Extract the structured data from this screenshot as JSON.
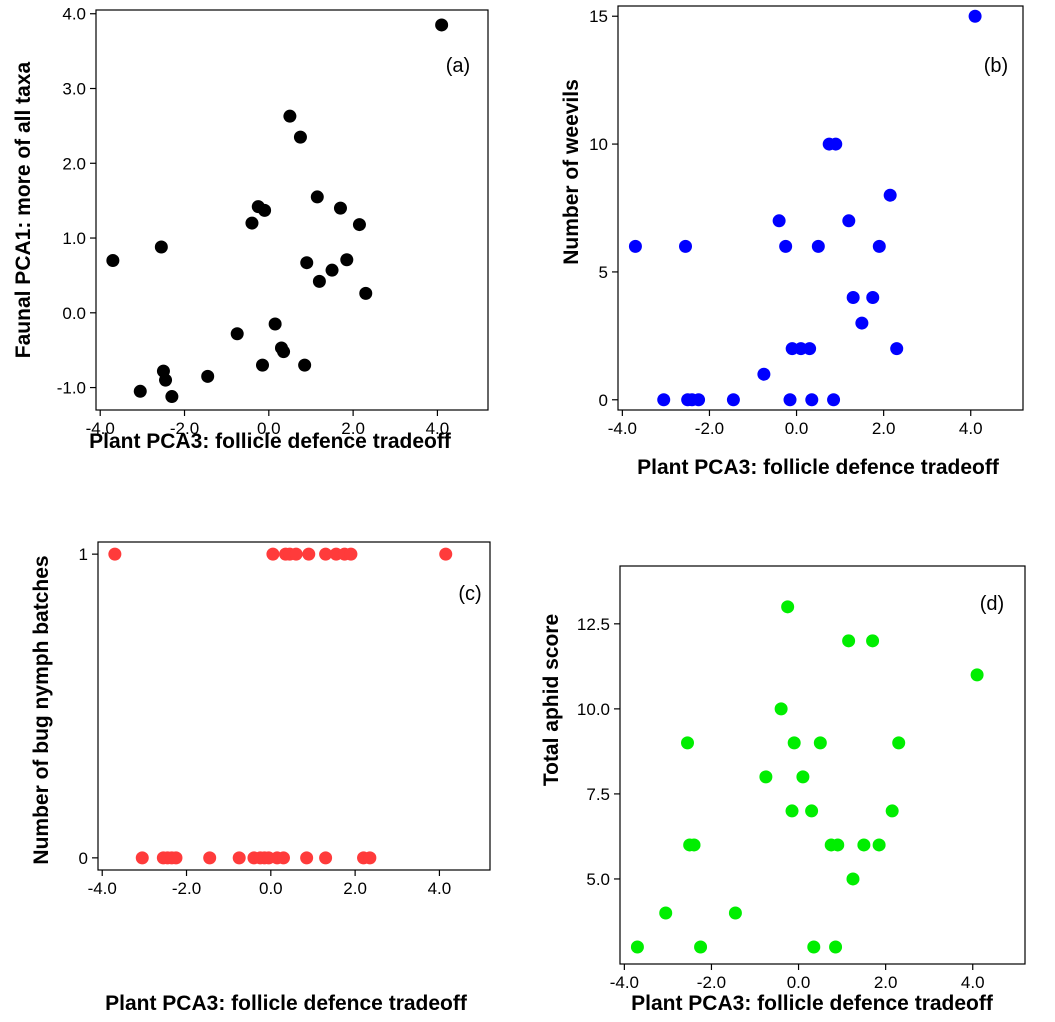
{
  "chart_data": [
    {
      "type": "scatter",
      "panel_label": "(a)",
      "xlabel": "Plant PCA3: follicle defence tradeoff",
      "ylabel": "Faunal PCA1: more of all taxa",
      "xlim": [
        -4.1,
        5.2
      ],
      "ylim": [
        -1.3,
        4.05
      ],
      "xticks": [
        -4.0,
        -2.0,
        0.0,
        2.0,
        4.0
      ],
      "xtick_labels": [
        "-4.0",
        "-2.0",
        "0.0",
        "2.0",
        "4.0"
      ],
      "yticks": [
        -1.0,
        0.0,
        1.0,
        2.0,
        3.0,
        4.0
      ],
      "ytick_labels": [
        "-1.0",
        "0.0",
        "1.0",
        "2.0",
        "3.0",
        "4.0"
      ],
      "grid": false,
      "color": "#000000",
      "points": [
        {
          "x": -3.7,
          "y": 0.7
        },
        {
          "x": -3.05,
          "y": -1.05
        },
        {
          "x": -2.55,
          "y": 0.88
        },
        {
          "x": -2.5,
          "y": -0.78
        },
        {
          "x": -2.45,
          "y": -0.9
        },
        {
          "x": -2.3,
          "y": -1.12
        },
        {
          "x": -1.45,
          "y": -0.85
        },
        {
          "x": -0.75,
          "y": -0.28
        },
        {
          "x": -0.4,
          "y": 1.2
        },
        {
          "x": -0.25,
          "y": 1.42
        },
        {
          "x": -0.15,
          "y": -0.7
        },
        {
          "x": -0.1,
          "y": 1.37
        },
        {
          "x": 0.15,
          "y": -0.15
        },
        {
          "x": 0.3,
          "y": -0.47
        },
        {
          "x": 0.35,
          "y": -0.52
        },
        {
          "x": 0.5,
          "y": 2.63
        },
        {
          "x": 0.75,
          "y": 2.35
        },
        {
          "x": 0.85,
          "y": -0.7
        },
        {
          "x": 0.9,
          "y": 0.67
        },
        {
          "x": 1.15,
          "y": 1.55
        },
        {
          "x": 1.2,
          "y": 0.42
        },
        {
          "x": 1.5,
          "y": 0.57
        },
        {
          "x": 1.7,
          "y": 1.4
        },
        {
          "x": 1.85,
          "y": 0.71
        },
        {
          "x": 2.15,
          "y": 1.18
        },
        {
          "x": 2.3,
          "y": 0.26
        },
        {
          "x": 4.1,
          "y": 3.85
        }
      ]
    },
    {
      "type": "scatter",
      "panel_label": "(b)",
      "xlabel": "Plant PCA3: follicle defence tradeoff",
      "ylabel": "Number of weevils",
      "xlim": [
        -4.1,
        5.2
      ],
      "ylim": [
        -0.4,
        15.4
      ],
      "xticks": [
        -4.0,
        -2.0,
        0.0,
        2.0,
        4.0
      ],
      "xtick_labels": [
        "-4.0",
        "-2.0",
        "0.0",
        "2.0",
        "4.0"
      ],
      "yticks": [
        0,
        5,
        10,
        15
      ],
      "ytick_labels": [
        "0",
        "5",
        "10",
        "15"
      ],
      "grid": false,
      "color": "#0000ff",
      "points": [
        {
          "x": -3.7,
          "y": 6
        },
        {
          "x": -3.05,
          "y": 0
        },
        {
          "x": -2.55,
          "y": 6
        },
        {
          "x": -2.5,
          "y": 0
        },
        {
          "x": -2.4,
          "y": 0
        },
        {
          "x": -2.25,
          "y": 0
        },
        {
          "x": -1.45,
          "y": 0
        },
        {
          "x": -0.75,
          "y": 1
        },
        {
          "x": -0.4,
          "y": 7
        },
        {
          "x": -0.25,
          "y": 6
        },
        {
          "x": -0.15,
          "y": 0
        },
        {
          "x": -0.1,
          "y": 2
        },
        {
          "x": 0.1,
          "y": 2
        },
        {
          "x": 0.3,
          "y": 2
        },
        {
          "x": 0.35,
          "y": 0
        },
        {
          "x": 0.5,
          "y": 6
        },
        {
          "x": 0.75,
          "y": 10
        },
        {
          "x": 0.9,
          "y": 10
        },
        {
          "x": 0.85,
          "y": 0
        },
        {
          "x": 1.2,
          "y": 7
        },
        {
          "x": 1.3,
          "y": 4
        },
        {
          "x": 1.5,
          "y": 3
        },
        {
          "x": 1.75,
          "y": 4
        },
        {
          "x": 1.9,
          "y": 6
        },
        {
          "x": 2.15,
          "y": 8
        },
        {
          "x": 2.3,
          "y": 2
        },
        {
          "x": 4.1,
          "y": 15
        }
      ]
    },
    {
      "type": "scatter",
      "panel_label": "(c)",
      "xlabel": "Plant PCA3: follicle defence tradeoff",
      "ylabel": "Number of bug nymph batches",
      "xlim": [
        -4.1,
        5.2
      ],
      "ylim": [
        -0.04,
        1.04
      ],
      "xticks": [
        -4.0,
        -2.0,
        0.0,
        2.0,
        4.0
      ],
      "xtick_labels": [
        "-4.0",
        "-2.0",
        "0.0",
        "2.0",
        "4.0"
      ],
      "yticks": [
        0,
        1
      ],
      "ytick_labels": [
        "0",
        "1"
      ],
      "grid": false,
      "color": "#ff3b3b",
      "points": [
        {
          "x": -3.7,
          "y": 1
        },
        {
          "x": -3.05,
          "y": 0
        },
        {
          "x": -2.55,
          "y": 0
        },
        {
          "x": -2.45,
          "y": 0
        },
        {
          "x": -2.35,
          "y": 0
        },
        {
          "x": -2.25,
          "y": 0
        },
        {
          "x": -1.45,
          "y": 0
        },
        {
          "x": -0.75,
          "y": 0
        },
        {
          "x": -0.4,
          "y": 0
        },
        {
          "x": -0.25,
          "y": 0
        },
        {
          "x": -0.15,
          "y": 0
        },
        {
          "x": -0.05,
          "y": 0
        },
        {
          "x": 0.05,
          "y": 1
        },
        {
          "x": 0.15,
          "y": 0
        },
        {
          "x": 0.3,
          "y": 0
        },
        {
          "x": 0.35,
          "y": 1
        },
        {
          "x": 0.45,
          "y": 1
        },
        {
          "x": 0.6,
          "y": 1
        },
        {
          "x": 0.85,
          "y": 0
        },
        {
          "x": 0.9,
          "y": 1
        },
        {
          "x": 1.3,
          "y": 0
        },
        {
          "x": 1.3,
          "y": 1
        },
        {
          "x": 1.55,
          "y": 1
        },
        {
          "x": 1.75,
          "y": 1
        },
        {
          "x": 1.9,
          "y": 1
        },
        {
          "x": 2.2,
          "y": 0
        },
        {
          "x": 2.35,
          "y": 0
        },
        {
          "x": 4.15,
          "y": 1
        }
      ]
    },
    {
      "type": "scatter",
      "panel_label": "(d)",
      "xlabel": "Plant PCA3: follicle defence tradeoff",
      "ylabel": "Total aphid score",
      "xlim": [
        -4.1,
        5.2
      ],
      "ylim": [
        2.5,
        14.2
      ],
      "xticks": [
        -4.0,
        -2.0,
        0.0,
        2.0,
        4.0
      ],
      "xtick_labels": [
        "-4.0",
        "-2.0",
        "0.0",
        "2.0",
        "4.0"
      ],
      "yticks": [
        5.0,
        7.5,
        10.0,
        12.5
      ],
      "ytick_labels": [
        "5.0",
        "7.5",
        "10.0",
        "12.5"
      ],
      "grid": false,
      "color": "#00ee00",
      "points": [
        {
          "x": -3.7,
          "y": 3
        },
        {
          "x": -3.05,
          "y": 4
        },
        {
          "x": -2.55,
          "y": 9
        },
        {
          "x": -2.5,
          "y": 6
        },
        {
          "x": -2.4,
          "y": 6
        },
        {
          "x": -2.25,
          "y": 3
        },
        {
          "x": -1.45,
          "y": 4
        },
        {
          "x": -0.75,
          "y": 8
        },
        {
          "x": -0.4,
          "y": 10
        },
        {
          "x": -0.25,
          "y": 13
        },
        {
          "x": -0.15,
          "y": 7
        },
        {
          "x": -0.1,
          "y": 9
        },
        {
          "x": 0.1,
          "y": 8
        },
        {
          "x": 0.3,
          "y": 7
        },
        {
          "x": 0.35,
          "y": 3
        },
        {
          "x": 0.5,
          "y": 9
        },
        {
          "x": 0.75,
          "y": 6
        },
        {
          "x": 0.9,
          "y": 6
        },
        {
          "x": 0.85,
          "y": 3
        },
        {
          "x": 1.15,
          "y": 12
        },
        {
          "x": 1.25,
          "y": 5
        },
        {
          "x": 1.5,
          "y": 6
        },
        {
          "x": 1.7,
          "y": 12
        },
        {
          "x": 1.85,
          "y": 6
        },
        {
          "x": 2.15,
          "y": 7
        },
        {
          "x": 2.3,
          "y": 9
        },
        {
          "x": 4.1,
          "y": 11
        }
      ]
    }
  ]
}
